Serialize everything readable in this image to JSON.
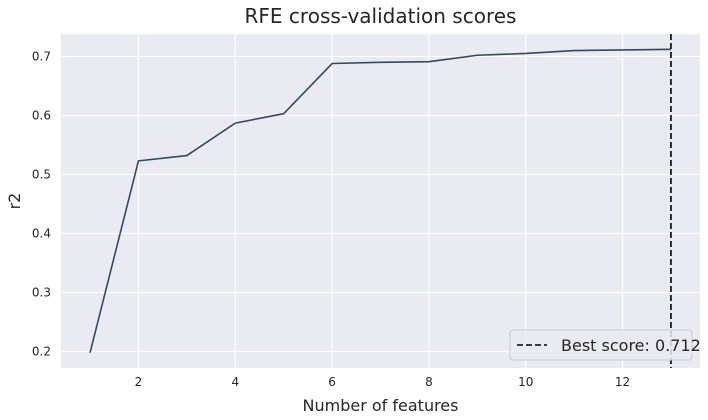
{
  "chart_data": {
    "type": "line",
    "title": "RFE cross-validation scores",
    "xlabel": "Number of features",
    "ylabel": "r2",
    "x": [
      1,
      2,
      3,
      4,
      5,
      6,
      7,
      8,
      9,
      10,
      11,
      12,
      13
    ],
    "series": [
      {
        "values": [
          0.198,
          0.523,
          0.532,
          0.587,
          0.603,
          0.688,
          0.69,
          0.691,
          0.702,
          0.705,
          0.71,
          0.711,
          0.712
        ]
      }
    ],
    "best_marker": {
      "x": 13,
      "label": "Best score: 0.712",
      "style": "dashed"
    },
    "xticks": [
      2,
      4,
      6,
      8,
      10,
      12
    ],
    "yticks": [
      0.2,
      0.3,
      0.4,
      0.5,
      0.6,
      0.7
    ],
    "xlim": [
      0.4,
      13.6
    ],
    "ylim": [
      0.172,
      0.738
    ],
    "grid": true,
    "legend_position": "lower-right",
    "colors": {
      "background": "#eaeaf2",
      "grid": "#ffffff",
      "line": "#34495e",
      "marker": "#000000"
    }
  }
}
